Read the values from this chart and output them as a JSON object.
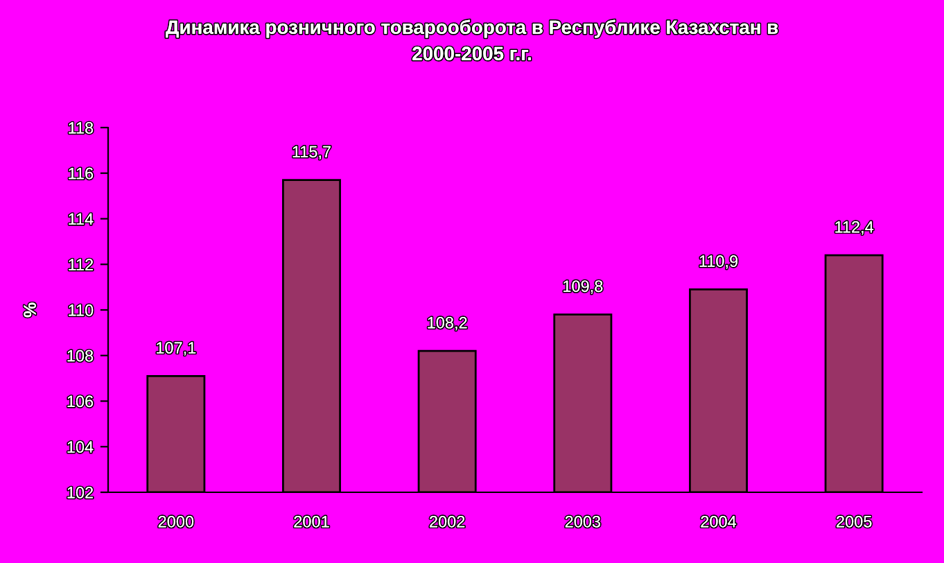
{
  "chart_data": {
    "type": "bar",
    "title": "Динамика розничного товарооборота в Республике Казахстан в\n2000-2005 г.г.",
    "ylabel": "%",
    "categories": [
      "2000",
      "2001",
      "2002",
      "2003",
      "2004",
      "2005"
    ],
    "values": [
      107.1,
      115.7,
      108.2,
      109.8,
      110.9,
      112.4
    ],
    "value_labels": [
      "107,1",
      "115,7",
      "108,2",
      "109,8",
      "110,9",
      "112,4"
    ],
    "color": "#993366",
    "ylim": [
      102,
      118
    ],
    "yticks": [
      102,
      104,
      106,
      108,
      110,
      112,
      114,
      116,
      118
    ],
    "grid": false,
    "legend": false
  }
}
